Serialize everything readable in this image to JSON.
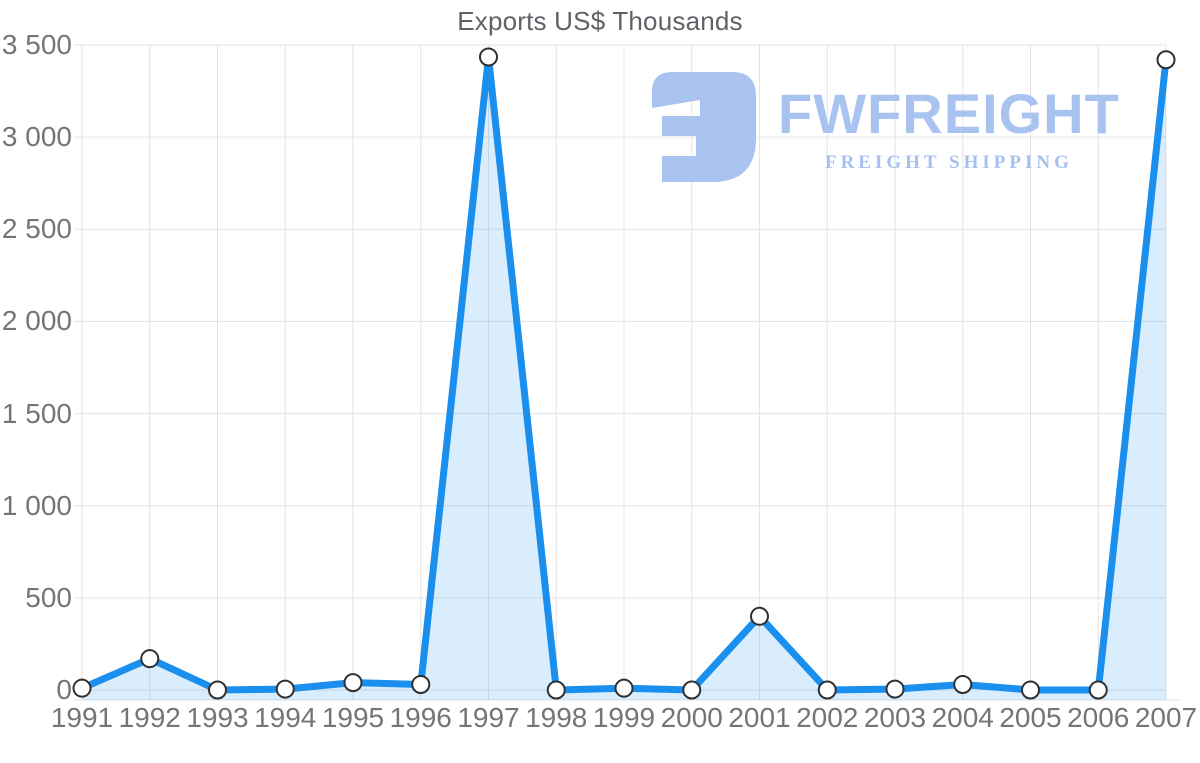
{
  "watermark": {
    "brand": "FWFREIGHT",
    "tagline": "FREIGHT SHIPPING",
    "color": "#a9c3f0"
  },
  "chart_data": {
    "type": "area",
    "title": "Exports US$ Thousands",
    "categories": [
      "1991",
      "1992",
      "1993",
      "1994",
      "1995",
      "1996",
      "1997",
      "1998",
      "1999",
      "2000",
      "2001",
      "2002",
      "2003",
      "2004",
      "2005",
      "2006",
      "2007"
    ],
    "values": [
      10,
      170,
      0,
      5,
      40,
      30,
      3435,
      0,
      10,
      0,
      400,
      0,
      5,
      30,
      0,
      0,
      3420
    ],
    "xlabel": "",
    "ylabel": "",
    "ylim": [
      0,
      3500
    ],
    "ytick_step": 500,
    "ytick_labels": [
      "0",
      "500",
      "1 000",
      "1 500",
      "2 000",
      "2 500",
      "3 000",
      "3 500"
    ],
    "grid": true,
    "legend": false,
    "colors": {
      "line": "#1a8fee",
      "fill": "rgba(26,143,238,0.16)",
      "grid": "#e3e3e3",
      "axis_text": "#757575",
      "title_text": "#5f6368",
      "marker_fill": "#ffffff",
      "marker_stroke": "#303030"
    }
  }
}
